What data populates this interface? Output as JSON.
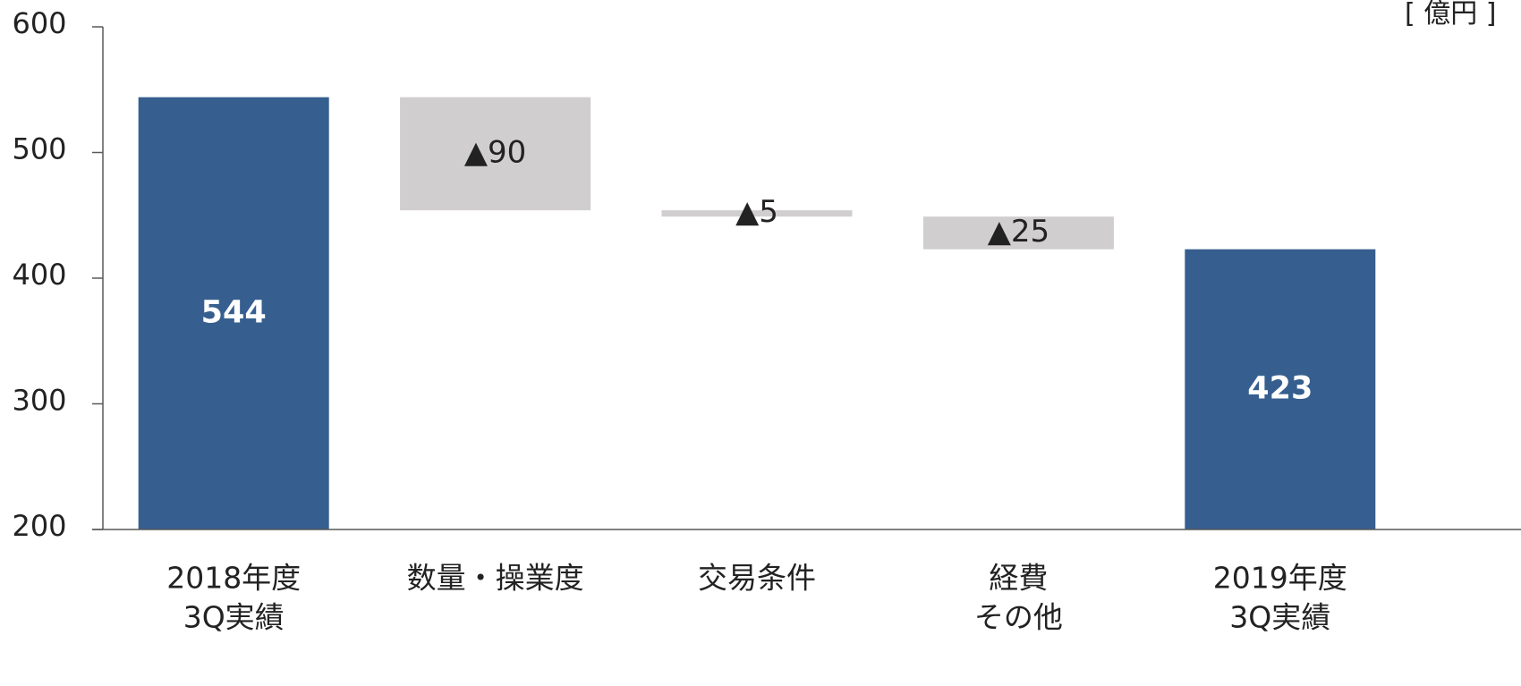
{
  "chart_data": {
    "type": "bar",
    "subtype": "waterfall",
    "unit_label": "[ 億円 ]",
    "yticks": [
      "600",
      "500",
      "400",
      "300",
      "200"
    ],
    "ylim": [
      200,
      600
    ],
    "categories": [
      [
        "2018年度",
        "3Q実績"
      ],
      [
        "数量・操業度"
      ],
      [
        "交易条件"
      ],
      [
        "経費",
        "その他"
      ],
      [
        "2019年度",
        "3Q実績"
      ]
    ],
    "bars": [
      {
        "kind": "total",
        "start": 200,
        "end": 544,
        "label": "544"
      },
      {
        "kind": "delta",
        "start": 544,
        "end": 454,
        "label": "▲90"
      },
      {
        "kind": "delta",
        "start": 454,
        "end": 449,
        "label": "▲5"
      },
      {
        "kind": "delta",
        "start": 449,
        "end": 423,
        "label": "▲25"
      },
      {
        "kind": "total",
        "start": 200,
        "end": 423,
        "label": "423"
      }
    ],
    "colors": {
      "total": "#365f8f",
      "delta": "#d0cece",
      "axis": "#595959",
      "text": "#222222"
    }
  }
}
